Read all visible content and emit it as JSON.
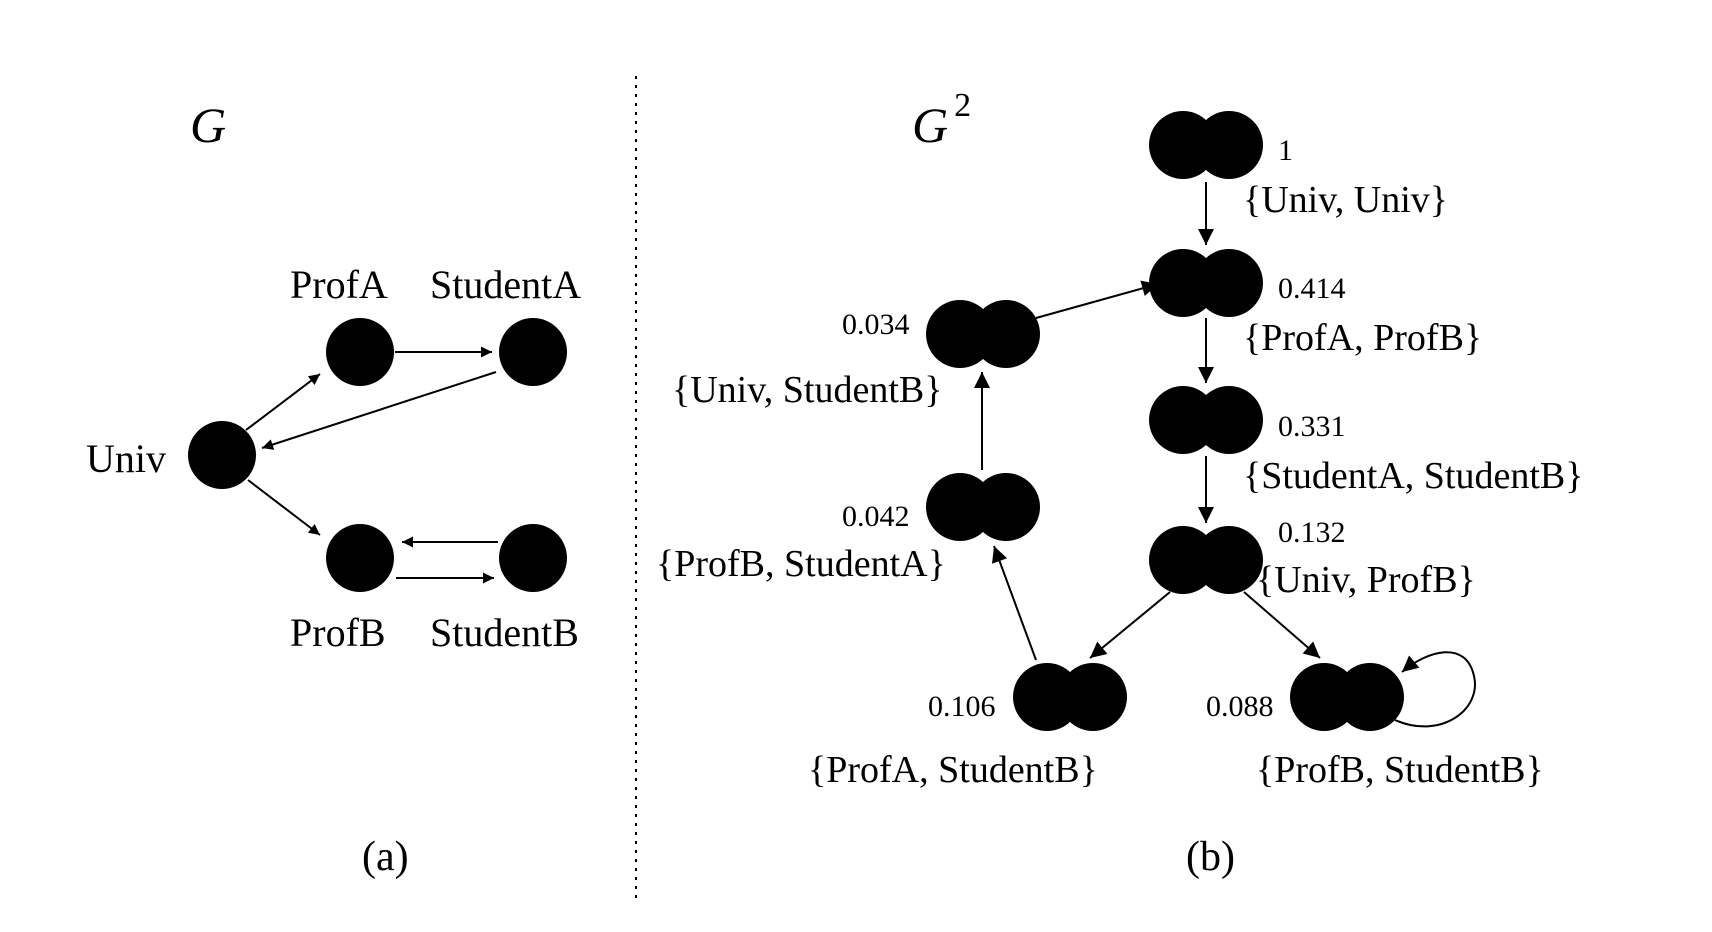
{
  "panel_a": {
    "title": "G",
    "caption": "(a)",
    "nodes": {
      "univ": "Univ",
      "profa": "ProfA",
      "studenta": "StudentA",
      "profb": "ProfB",
      "studentb": "StudentB"
    }
  },
  "panel_b": {
    "title": "G",
    "title_sup": "2",
    "caption": "(b)",
    "nodes": [
      {
        "id": "univ_univ",
        "label": "{Univ, Univ}",
        "score": "1"
      },
      {
        "id": "profa_profb",
        "label": "{ProfA, ProfB}",
        "score": "0.414"
      },
      {
        "id": "studenta_studentb",
        "label": "{StudentA, StudentB}",
        "score": "0.331"
      },
      {
        "id": "univ_profb",
        "label": "{Univ, ProfB}",
        "score": "0.132"
      },
      {
        "id": "univ_studentb",
        "label": "{Univ, StudentB}",
        "score": "0.034"
      },
      {
        "id": "profb_studenta",
        "label": "{ProfB, StudentA}",
        "score": "0.042"
      },
      {
        "id": "profa_studentb",
        "label": "{ProfA, StudentB}",
        "score": "0.106"
      },
      {
        "id": "profb_studentb",
        "label": "{ProfB, StudentB}",
        "score": "0.088"
      }
    ]
  }
}
